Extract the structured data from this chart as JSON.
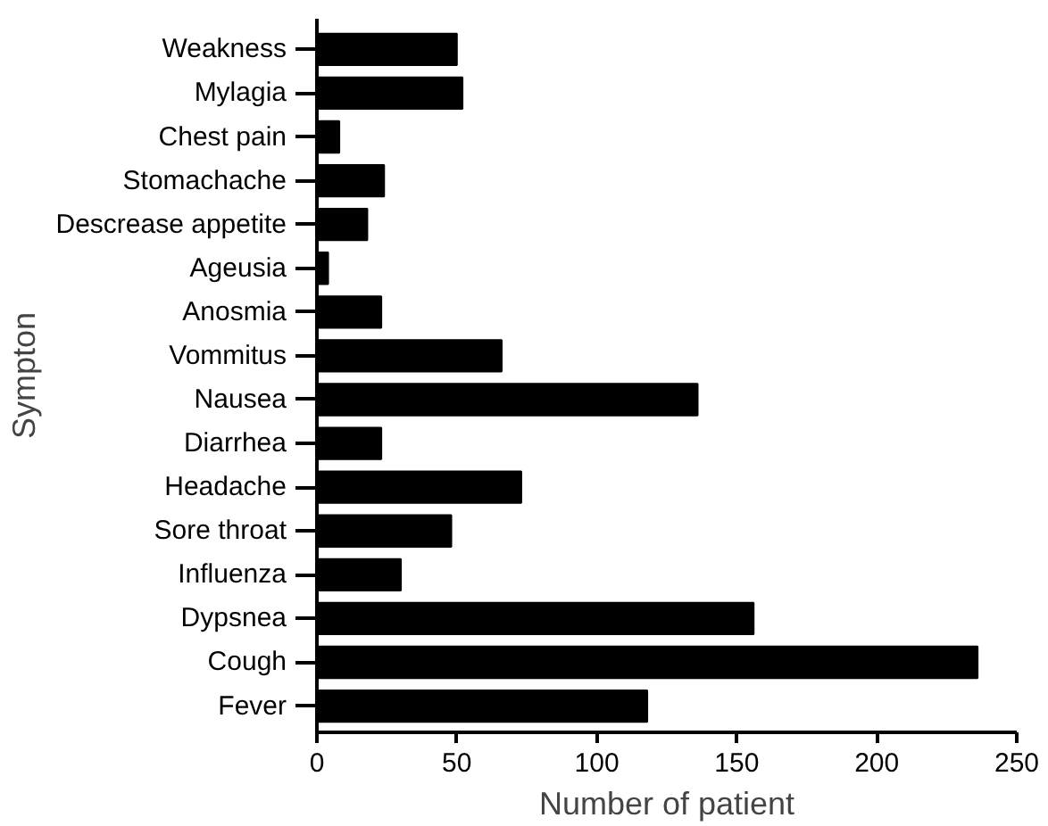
{
  "chart_data": {
    "type": "bar",
    "orientation": "horizontal",
    "xlabel": "Number of patient",
    "ylabel": "Sympton",
    "categories": [
      "Weakness",
      "Mylagia",
      "Chest pain",
      "Stomachache",
      "Descrease appetite",
      "Ageusia",
      "Anosmia",
      "Vommitus",
      "Nausea",
      "Diarrhea",
      "Headache",
      "Sore throat",
      "Influenza",
      "Dypsnea",
      "Cough",
      "Fever"
    ],
    "values": [
      50,
      52,
      8,
      24,
      18,
      4,
      23,
      66,
      136,
      23,
      73,
      48,
      30,
      156,
      236,
      118
    ],
    "color": "#000000",
    "xlim": [
      0,
      250
    ],
    "xticks": [
      0,
      50,
      100,
      150,
      200,
      250
    ],
    "grid": false
  }
}
